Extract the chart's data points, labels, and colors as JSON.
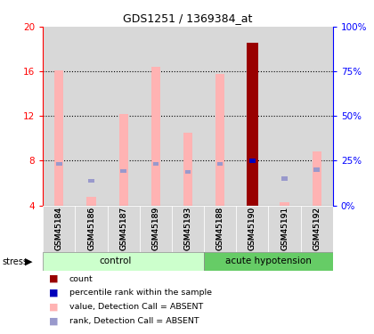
{
  "title": "GDS1251 / 1369384_at",
  "samples": [
    "GSM45184",
    "GSM45186",
    "GSM45187",
    "GSM45189",
    "GSM45193",
    "GSM45188",
    "GSM45190",
    "GSM45191",
    "GSM45192"
  ],
  "value_bars": [
    16.1,
    4.8,
    12.2,
    16.4,
    10.5,
    15.8,
    18.6,
    4.3,
    8.8
  ],
  "rank_bars_left": [
    7.7,
    6.2,
    7.1,
    7.7,
    7.0,
    7.7,
    8.0,
    6.4,
    7.2
  ],
  "count_bar_index": 6,
  "ylim_left": [
    4,
    20
  ],
  "ylim_right": [
    0,
    100
  ],
  "yticks_left": [
    4,
    8,
    12,
    16,
    20
  ],
  "yticks_right": [
    0,
    25,
    50,
    75,
    100
  ],
  "ytick_labels_left": [
    "4",
    "8",
    "12",
    "16",
    "20"
  ],
  "ytick_labels_right": [
    "0%",
    "25%",
    "50%",
    "75%",
    "100%"
  ],
  "color_value_bar": "#ffb3b3",
  "color_rank_bar": "#b3b3e0",
  "color_count_bar": "#990000",
  "color_rank_dot_count": "#0000bb",
  "color_rank_dot_absent": "#9999cc",
  "color_col_bg": "#d8d8d8",
  "color_group_control": "#ccffcc",
  "color_group_acute": "#66cc66",
  "n_control": 5,
  "legend_items": [
    {
      "label": "count",
      "color": "#990000",
      "marker": "s"
    },
    {
      "label": "percentile rank within the sample",
      "color": "#0000bb",
      "marker": "s"
    },
    {
      "label": "value, Detection Call = ABSENT",
      "color": "#ffb3b3",
      "marker": "s"
    },
    {
      "label": "rank, Detection Call = ABSENT",
      "color": "#9999cc",
      "marker": "s"
    }
  ]
}
